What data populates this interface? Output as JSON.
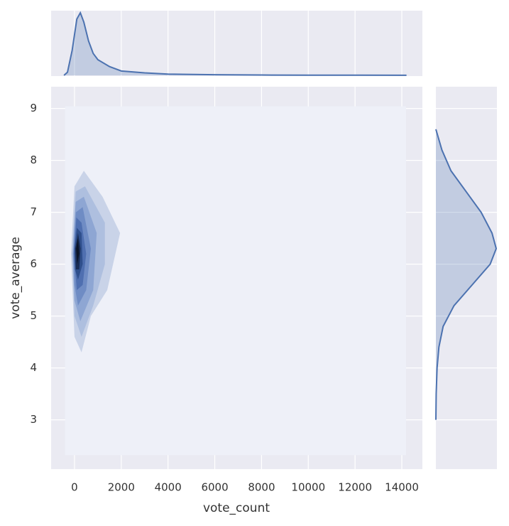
{
  "chart_data": {
    "type": "joint_kde",
    "x_label": "vote_count",
    "y_label": "vote_average",
    "xlim": [
      -1000,
      14880
    ],
    "ylim": [
      2.05,
      9.42
    ],
    "xticks": [
      0,
      2000,
      4000,
      6000,
      8000,
      10000,
      12000,
      14000
    ],
    "yticks": [
      3,
      4,
      5,
      6,
      7,
      8,
      9
    ],
    "grid": true,
    "color": "#4c72b0",
    "contours": [
      {
        "color": "#eef0f8",
        "x": [
          -400,
          14180,
          14180,
          -400
        ],
        "y": [
          9.04,
          9.04,
          2.32,
          2.32
        ]
      },
      {
        "color": "#c9d3e8",
        "x": [
          -150,
          0,
          400,
          1200,
          1950,
          1400,
          700,
          300,
          0
        ],
        "y": [
          6.2,
          7.5,
          7.8,
          7.3,
          6.6,
          5.5,
          5.0,
          4.3,
          4.6
        ]
      },
      {
        "color": "#aebfdf",
        "x": [
          -100,
          50,
          450,
          1300,
          1300,
          800,
          300,
          0
        ],
        "y": [
          6.2,
          7.4,
          7.5,
          6.8,
          6.0,
          5.2,
          4.6,
          5.0
        ]
      },
      {
        "color": "#8ea6d3",
        "x": [
          -80,
          50,
          400,
          950,
          800,
          250,
          0
        ],
        "y": [
          6.2,
          7.2,
          7.3,
          6.6,
          5.5,
          4.9,
          5.3
        ]
      },
      {
        "color": "#6f8cc4",
        "x": [
          -50,
          60,
          350,
          700,
          500,
          150,
          0
        ],
        "y": [
          6.2,
          7.0,
          7.1,
          6.3,
          5.5,
          5.2,
          5.6
        ]
      },
      {
        "color": "#4f6fb0",
        "x": [
          -30,
          80,
          300,
          500,
          350,
          100
        ],
        "y": [
          6.2,
          6.9,
          6.8,
          6.2,
          5.6,
          5.5
        ]
      },
      {
        "color": "#2f4f8c",
        "x": [
          0,
          100,
          300,
          350,
          150,
          20
        ],
        "y": [
          6.3,
          6.7,
          6.6,
          6.0,
          5.7,
          5.9
        ]
      },
      {
        "color": "#1a2d55",
        "x": [
          30,
          150,
          260,
          200,
          60
        ],
        "y": [
          6.3,
          6.6,
          6.3,
          5.9,
          5.9
        ]
      },
      {
        "color": "#0b1428",
        "x": [
          70,
          150,
          200,
          120
        ],
        "y": [
          6.3,
          6.5,
          6.2,
          6.0
        ]
      }
    ],
    "x_marginal": {
      "x": [
        -450,
        -300,
        -100,
        100,
        250,
        400,
        600,
        800,
        1000,
        1500,
        2000,
        3000,
        4000,
        6000,
        8000,
        10000,
        14200
      ],
      "density": [
        0,
        0.05,
        0.4,
        0.9,
        1.0,
        0.85,
        0.55,
        0.35,
        0.25,
        0.14,
        0.07,
        0.04,
        0.02,
        0.01,
        0.005,
        0.003,
        0.002
      ]
    },
    "y_marginal": {
      "y": [
        8.6,
        8.2,
        7.8,
        7.4,
        7.0,
        6.6,
        6.3,
        6.0,
        5.6,
        5.2,
        4.8,
        4.4,
        4.0,
        3.5,
        3.0
      ],
      "density": [
        0,
        0.1,
        0.25,
        0.5,
        0.75,
        0.93,
        1.0,
        0.9,
        0.6,
        0.3,
        0.12,
        0.05,
        0.02,
        0.005,
        0
      ]
    }
  }
}
